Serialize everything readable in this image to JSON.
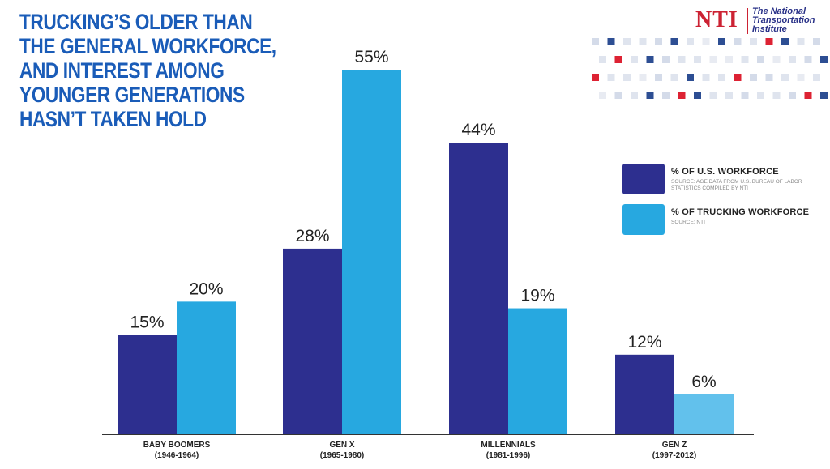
{
  "title_lines": [
    "TRUCKING’S OLDER THAN",
    "THE GENERAL WORKFORCE,",
    "AND INTEREST AMONG",
    "YOUNGER GENERATIONS",
    "HASN’T TAKEN HOLD"
  ],
  "logo": {
    "mark": "NTI",
    "text_lines": [
      "The National",
      "Transportation",
      "Institute"
    ]
  },
  "colors": {
    "title": "#1a5cb8",
    "us_workforce": "#2d2f8f",
    "trucking_workforce": "#27a8e0",
    "trucking_workforce_light": "#62c1ec",
    "axis": "#333333"
  },
  "legend": {
    "items": [
      {
        "label": "% OF U.S. WORKFORCE",
        "source": "SOURCE: AGE DATA FROM U.S. BUREAU OF LABOR STATISTICS COMPILED BY NTI"
      },
      {
        "label": "% OF TRUCKING WORKFORCE",
        "source": "SOURCE: NTI"
      }
    ]
  },
  "chart_data": {
    "type": "bar",
    "title": "TRUCKING’S OLDER THAN THE GENERAL WORKFORCE, AND INTEREST AMONG YOUNGER GENERATIONS HASN’T TAKEN HOLD",
    "categories": [
      {
        "name": "BABY BOOMERS",
        "range": "(1946-1964)"
      },
      {
        "name": "GEN X",
        "range": "(1965-1980)"
      },
      {
        "name": "MILLENNIALS",
        "range": "(1981-1996)"
      },
      {
        "name": "GEN Z",
        "range": "(1997-2012)"
      }
    ],
    "series": [
      {
        "name": "% OF U.S. WORKFORCE",
        "values": [
          15,
          28,
          44,
          12
        ]
      },
      {
        "name": "% OF TRUCKING WORKFORCE",
        "values": [
          20,
          55,
          19,
          6
        ]
      }
    ],
    "value_suffix": "%",
    "xlabel": "",
    "ylabel": "",
    "ylim": [
      0,
      60
    ],
    "grid": false,
    "legend_position": "right"
  }
}
